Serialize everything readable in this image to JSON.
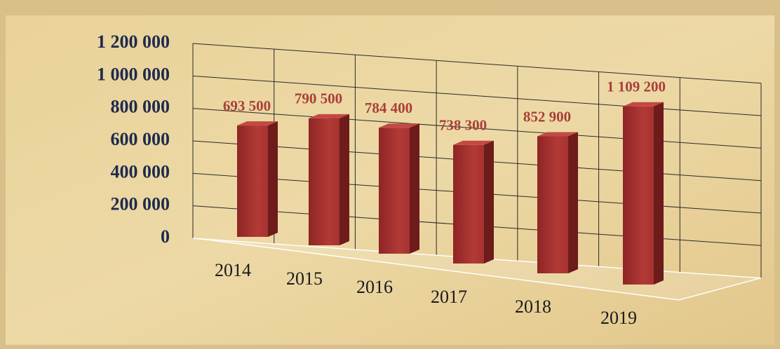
{
  "chart_data": {
    "type": "bar3d",
    "categories": [
      "2014",
      "2015",
      "2016",
      "2017",
      "2018",
      "2019"
    ],
    "values": [
      693500,
      790500,
      784400,
      738300,
      852900,
      1109200
    ],
    "value_labels": [
      "693 500",
      "790 500",
      "784 400",
      "738 300",
      "852 900",
      "1 109 200"
    ],
    "color": "#9e2a2a",
    "ylim": [
      0,
      1200000
    ],
    "yticks": [
      0,
      {
        "value": 200000,
        "label": "200 000"
      },
      {
        "value": 400000,
        "label": "400 000"
      },
      {
        "value": 600000,
        "label": "600 000"
      },
      {
        "value": 800000,
        "label": "800 000"
      },
      {
        "value": 1000000,
        "label": "1 000 000"
      },
      {
        "value": 1200000,
        "label": "1 200 000"
      }
    ],
    "grid": true
  }
}
